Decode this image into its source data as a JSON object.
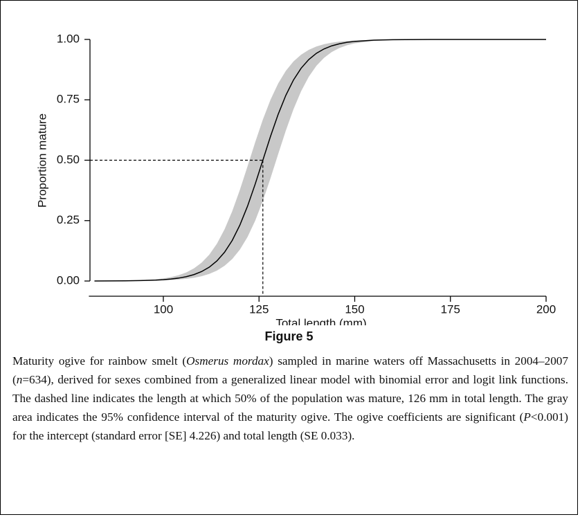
{
  "chart_data": {
    "type": "line",
    "xlabel": "Total length (mm)",
    "ylabel": "Proportion mature",
    "xlim": [
      80,
      200
    ],
    "xticks": [
      100,
      125,
      150,
      175,
      200
    ],
    "ylim": [
      -0.03,
      1.05
    ],
    "yticks": [
      {
        "value": 0,
        "label": "0.00"
      },
      {
        "value": 0.25,
        "label": "0.25"
      },
      {
        "value": 0.5,
        "label": "0.50"
      },
      {
        "value": 0.75,
        "label": "0.75"
      },
      {
        "value": 1,
        "label": "1.00"
      }
    ],
    "x": [
      82,
      86,
      90,
      94,
      98,
      100,
      102,
      104,
      106,
      108,
      110,
      112,
      114,
      116,
      118,
      120,
      122,
      124,
      126,
      128,
      130,
      132,
      134,
      136,
      138,
      140,
      142,
      144,
      146,
      148,
      150,
      155,
      160,
      170,
      180,
      190,
      200
    ],
    "series": [
      {
        "color": "#000000",
        "values": [
          0.0002,
          0.0003,
          0.0007,
          0.0017,
          0.0037,
          0.0055,
          0.0082,
          0.0121,
          0.018,
          0.0266,
          0.0392,
          0.0573,
          0.0832,
          0.1192,
          0.168,
          0.2315,
          0.31,
          0.4013,
          0.5,
          0.5987,
          0.69,
          0.7685,
          0.832,
          0.8808,
          0.9168,
          0.9427,
          0.9608,
          0.9734,
          0.982,
          0.9879,
          0.9918,
          0.997,
          0.9989,
          0.9998,
          1.0,
          1.0,
          1.0
        ]
      }
    ],
    "band": {
      "color": "#c8c8c8",
      "upper": [
        0.0003,
        0.0007,
        0.0015,
        0.0033,
        0.0074,
        0.011,
        0.0163,
        0.0241,
        0.0356,
        0.0522,
        0.0759,
        0.1091,
        0.1545,
        0.2142,
        0.289,
        0.3775,
        0.475,
        0.5744,
        0.6682,
        0.7503,
        0.8176,
        0.8699,
        0.9088,
        0.937,
        0.9569,
        0.9707,
        0.9802,
        0.9866,
        0.991,
        0.9939,
        0.9959,
        0.9985,
        0.9994,
        0.9999,
        1.0,
        1.0,
        1.0
      ],
      "lower": [
        0.0001,
        0.0002,
        0.0004,
        0.0008,
        0.0018,
        0.0027,
        0.0041,
        0.0061,
        0.009,
        0.0134,
        0.0198,
        0.0293,
        0.0431,
        0.063,
        0.0911,
        0.1301,
        0.1824,
        0.2497,
        0.3318,
        0.4256,
        0.525,
        0.6225,
        0.711,
        0.7858,
        0.8455,
        0.8909,
        0.9241,
        0.9479,
        0.9644,
        0.9759,
        0.9837,
        0.9939,
        0.9978,
        0.9997,
        1.0,
        1.0,
        1.0
      ]
    },
    "reference": {
      "x": 126,
      "y": 0.5
    }
  },
  "figure_label": "Figure 5",
  "caption": [
    "Maturity ogive for rainbow smelt (",
    "Osmerus mordax",
    ") sampled in marine waters off Massachusetts in 2004–2007 (",
    "n",
    "=634), derived for sexes combined from a generalized linear model with binomial error and logit link functions. The dashed line indicates the length at which 50% of the population was mature, 126 mm in total length. The gray area indicates the 95% confidence interval of the maturity ogive. The ogive coefficients are significant (",
    "P",
    "<0.001) for the intercept (standard error [SE] 4.226) and total length (SE 0.033)."
  ]
}
